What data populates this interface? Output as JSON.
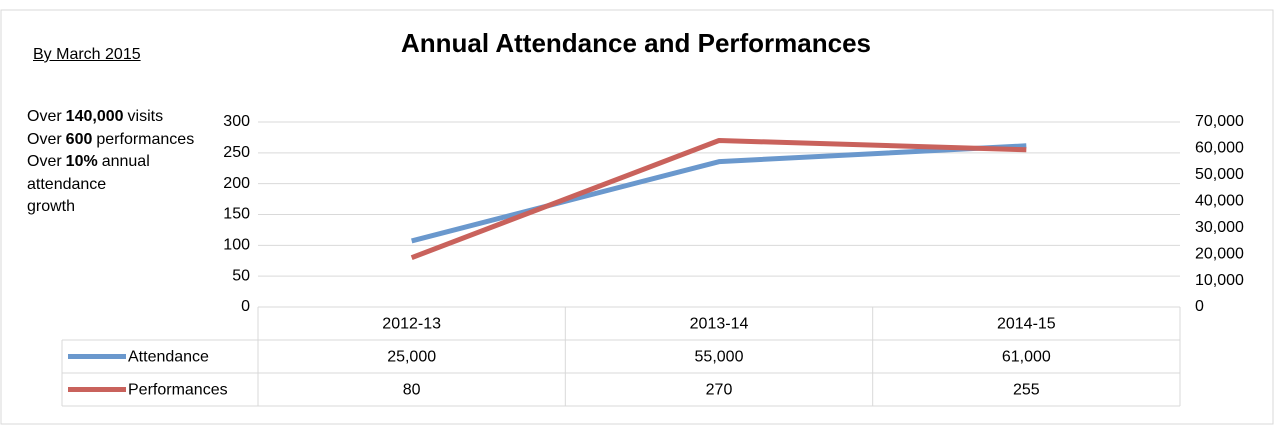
{
  "chart_data": {
    "type": "line",
    "title": "Annual Attendance and Performances",
    "note_heading": "By March 2015",
    "notes": [
      [
        "Over",
        "140,000",
        "visits"
      ],
      [
        "Over",
        "600",
        "performances"
      ],
      [
        "Over",
        "10%",
        "annual attendance growth"
      ]
    ],
    "categories": [
      "2012-13",
      "2013-14",
      "2014-15"
    ],
    "series": [
      {
        "name": "Attendance",
        "color": "#6a98cd",
        "axis": "y2",
        "values": [
          25000,
          55000,
          61000
        ],
        "value_labels": [
          "25,000",
          "55,000",
          "61,000"
        ]
      },
      {
        "name": "Performances",
        "color": "#c9625c",
        "values": [
          80,
          270,
          255
        ]
      }
    ],
    "ylim": [
      0,
      300
    ],
    "yticks": [
      0,
      50,
      100,
      150,
      200,
      250,
      300
    ],
    "y2lim": [
      0,
      70000
    ],
    "y2ticks": [
      0,
      {
        "value": 10000,
        "label": "10,000"
      },
      {
        "value": 20000,
        "label": "20,000"
      },
      {
        "value": 30000,
        "label": "30,000"
      },
      {
        "value": 40000,
        "label": "40,000"
      },
      {
        "value": 50000,
        "label": "50,000"
      },
      {
        "value": 60000,
        "label": "60,000"
      },
      {
        "value": 70000,
        "label": "70,000"
      }
    ],
    "grid": true
  }
}
